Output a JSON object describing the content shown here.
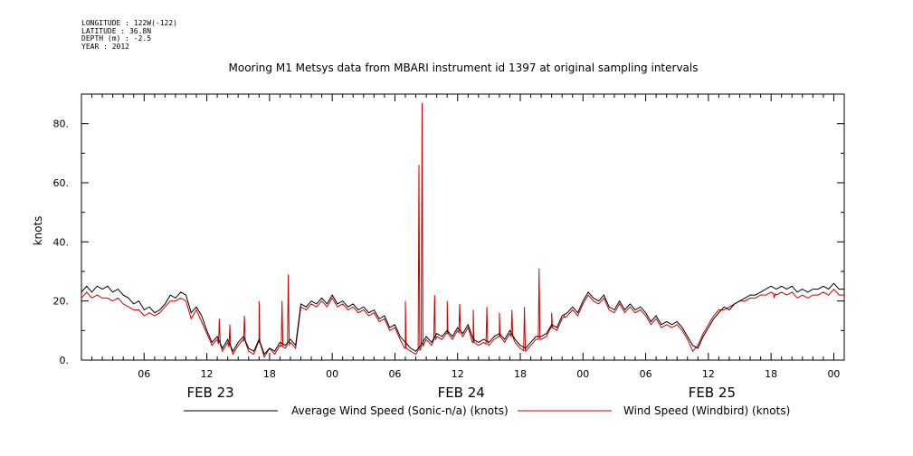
{
  "header": {
    "longitude": "LONGITUDE : 122W(-122)",
    "latitude": "LATITUDE : 36.8N",
    "depth": "DEPTH (m) : -2.5",
    "year": "YEAR : 2012"
  },
  "chart_data": {
    "type": "line",
    "title": "Mooring M1 Metsys data from MBARI instrument id 1397 at original sampling intervals",
    "ylabel": "knots",
    "ylim": [
      0,
      90
    ],
    "yticks": [
      0,
      20,
      40,
      60,
      80
    ],
    "ytick_labels": [
      "0.",
      "20.",
      "40.",
      "60.",
      "80."
    ],
    "xlim": [
      0,
      73
    ],
    "xticks": [
      6,
      12,
      18,
      24,
      30,
      36,
      42,
      48,
      54,
      60,
      66,
      72
    ],
    "xtick_labels": [
      "06",
      "12",
      "18",
      "00",
      "06",
      "12",
      "18",
      "00",
      "06",
      "12",
      "18",
      "00"
    ],
    "date_labels": [
      {
        "x": 12,
        "label": "FEB 23"
      },
      {
        "x": 36,
        "label": "FEB 24"
      },
      {
        "x": 60,
        "label": "FEB 25"
      }
    ],
    "series": [
      {
        "name": "Average Wind Speed (Sonic-n/a) (knots)",
        "color": "#000000",
        "points": [
          [
            0,
            23
          ],
          [
            0.5,
            25
          ],
          [
            1,
            23
          ],
          [
            1.5,
            25
          ],
          [
            2,
            24
          ],
          [
            2.5,
            25
          ],
          [
            3,
            23
          ],
          [
            3.5,
            24
          ],
          [
            4,
            22
          ],
          [
            4.5,
            21
          ],
          [
            5,
            19
          ],
          [
            5.5,
            20
          ],
          [
            6,
            17
          ],
          [
            6.5,
            18
          ],
          [
            7,
            16
          ],
          [
            7.5,
            17
          ],
          [
            8,
            19
          ],
          [
            8.5,
            22
          ],
          [
            9,
            21
          ],
          [
            9.5,
            23
          ],
          [
            10,
            22
          ],
          [
            10.5,
            16
          ],
          [
            11,
            18
          ],
          [
            11.5,
            15
          ],
          [
            12,
            10
          ],
          [
            12.5,
            6
          ],
          [
            13,
            8
          ],
          [
            13.5,
            4
          ],
          [
            14,
            7
          ],
          [
            14.5,
            3
          ],
          [
            15,
            6
          ],
          [
            15.5,
            8
          ],
          [
            16,
            4
          ],
          [
            16.5,
            3
          ],
          [
            17,
            7
          ],
          [
            17.5,
            2
          ],
          [
            18,
            4
          ],
          [
            18.5,
            3
          ],
          [
            19,
            6
          ],
          [
            19.5,
            5
          ],
          [
            20,
            7
          ],
          [
            20.5,
            5
          ],
          [
            21,
            19
          ],
          [
            21.5,
            18
          ],
          [
            22,
            20
          ],
          [
            22.5,
            19
          ],
          [
            23,
            21
          ],
          [
            23.5,
            19
          ],
          [
            24,
            22
          ],
          [
            24.5,
            19
          ],
          [
            25,
            20
          ],
          [
            25.5,
            18
          ],
          [
            26,
            19
          ],
          [
            26.5,
            17
          ],
          [
            27,
            18
          ],
          [
            27.5,
            16
          ],
          [
            28,
            17
          ],
          [
            28.5,
            14
          ],
          [
            29,
            15
          ],
          [
            29.5,
            11
          ],
          [
            30,
            12
          ],
          [
            30.5,
            8
          ],
          [
            31,
            6
          ],
          [
            31.5,
            4
          ],
          [
            32,
            3
          ],
          [
            32.5,
            5
          ],
          [
            33,
            8
          ],
          [
            33.5,
            6
          ],
          [
            34,
            9
          ],
          [
            34.5,
            8
          ],
          [
            35,
            10
          ],
          [
            35.5,
            8
          ],
          [
            36,
            11
          ],
          [
            36.5,
            9
          ],
          [
            37,
            12
          ],
          [
            37.5,
            7
          ],
          [
            38,
            6
          ],
          [
            38.5,
            7
          ],
          [
            39,
            6
          ],
          [
            39.5,
            8
          ],
          [
            40,
            9
          ],
          [
            40.5,
            7
          ],
          [
            41,
            10
          ],
          [
            41.5,
            7
          ],
          [
            42,
            5
          ],
          [
            42.5,
            4
          ],
          [
            43,
            6
          ],
          [
            43.5,
            8
          ],
          [
            44,
            8
          ],
          [
            44.5,
            9
          ],
          [
            45,
            12
          ],
          [
            45.5,
            11
          ],
          [
            46,
            15
          ],
          [
            46.5,
            16
          ],
          [
            47,
            18
          ],
          [
            47.5,
            16
          ],
          [
            48,
            20
          ],
          [
            48.5,
            23
          ],
          [
            49,
            21
          ],
          [
            49.5,
            20
          ],
          [
            50,
            22
          ],
          [
            50.5,
            18
          ],
          [
            51,
            17
          ],
          [
            51.5,
            20
          ],
          [
            52,
            17
          ],
          [
            52.5,
            19
          ],
          [
            53,
            17
          ],
          [
            53.5,
            18
          ],
          [
            54,
            16
          ],
          [
            54.5,
            13
          ],
          [
            55,
            15
          ],
          [
            55.5,
            12
          ],
          [
            56,
            13
          ],
          [
            56.5,
            12
          ],
          [
            57,
            13
          ],
          [
            57.5,
            11
          ],
          [
            58,
            8
          ],
          [
            58.5,
            5
          ],
          [
            59,
            4
          ],
          [
            59.5,
            8
          ],
          [
            60,
            11
          ],
          [
            60.5,
            14
          ],
          [
            61,
            16
          ],
          [
            61.5,
            18
          ],
          [
            62,
            17
          ],
          [
            62.5,
            19
          ],
          [
            63,
            20
          ],
          [
            63.5,
            21
          ],
          [
            64,
            22
          ],
          [
            64.5,
            22
          ],
          [
            65,
            23
          ],
          [
            65.5,
            24
          ],
          [
            66,
            25
          ],
          [
            66.5,
            24
          ],
          [
            67,
            25
          ],
          [
            67.5,
            24
          ],
          [
            68,
            25
          ],
          [
            68.5,
            23
          ],
          [
            69,
            24
          ],
          [
            69.5,
            23
          ],
          [
            70,
            24
          ],
          [
            70.5,
            24
          ],
          [
            71,
            25
          ],
          [
            71.5,
            24
          ],
          [
            72,
            26
          ],
          [
            72.5,
            24
          ],
          [
            73,
            24
          ]
        ]
      },
      {
        "name": "Wind Speed (Windbird) (knots)",
        "color": "#cc0000",
        "points": [
          [
            0,
            21
          ],
          [
            0.5,
            23
          ],
          [
            1,
            21
          ],
          [
            1.5,
            22
          ],
          [
            2,
            21
          ],
          [
            2.5,
            21
          ],
          [
            3,
            20
          ],
          [
            3.5,
            21
          ],
          [
            4,
            19
          ],
          [
            4.5,
            18
          ],
          [
            5,
            17
          ],
          [
            5.5,
            17
          ],
          [
            6,
            15
          ],
          [
            6.5,
            16
          ],
          [
            7,
            15
          ],
          [
            7.5,
            16
          ],
          [
            8,
            18
          ],
          [
            8.5,
            20
          ],
          [
            9,
            20
          ],
          [
            9.5,
            21
          ],
          [
            10,
            20
          ],
          [
            10.5,
            14
          ],
          [
            11,
            17
          ],
          [
            11.5,
            13
          ],
          [
            12,
            9
          ],
          [
            12.5,
            5
          ],
          [
            13,
            7
          ],
          [
            13.5,
            3
          ],
          [
            14,
            6
          ],
          [
            14.5,
            2
          ],
          [
            15,
            5
          ],
          [
            15.5,
            7
          ],
          [
            16,
            3
          ],
          [
            16.5,
            2
          ],
          [
            17,
            6
          ],
          [
            17.5,
            1
          ],
          [
            18,
            4
          ],
          [
            18.5,
            2
          ],
          [
            19,
            5
          ],
          [
            19.5,
            4
          ],
          [
            20,
            6
          ],
          [
            20.5,
            4
          ],
          [
            21,
            18
          ],
          [
            21.5,
            17
          ],
          [
            22,
            19
          ],
          [
            22.5,
            18
          ],
          [
            23,
            20
          ],
          [
            23.5,
            18
          ],
          [
            24,
            21
          ],
          [
            24.5,
            18
          ],
          [
            25,
            19
          ],
          [
            25.5,
            17
          ],
          [
            26,
            18
          ],
          [
            26.5,
            16
          ],
          [
            27,
            17
          ],
          [
            27.5,
            15
          ],
          [
            28,
            16
          ],
          [
            28.5,
            13
          ],
          [
            29,
            14
          ],
          [
            29.5,
            10
          ],
          [
            30,
            11
          ],
          [
            30.5,
            7
          ],
          [
            31,
            4
          ],
          [
            31.5,
            3
          ],
          [
            32,
            2
          ],
          [
            32.5,
            4
          ],
          [
            33,
            7
          ],
          [
            33.5,
            5
          ],
          [
            34,
            8
          ],
          [
            34.5,
            7
          ],
          [
            35,
            9
          ],
          [
            35.5,
            7
          ],
          [
            36,
            10
          ],
          [
            36.5,
            8
          ],
          [
            37,
            11
          ],
          [
            37.5,
            6
          ],
          [
            38,
            5
          ],
          [
            38.5,
            6
          ],
          [
            39,
            5
          ],
          [
            39.5,
            7
          ],
          [
            40,
            8
          ],
          [
            40.5,
            6
          ],
          [
            41,
            9
          ],
          [
            41.5,
            6
          ],
          [
            42,
            4
          ],
          [
            42.5,
            3
          ],
          [
            43,
            5
          ],
          [
            43.5,
            7
          ],
          [
            44,
            7
          ],
          [
            44.5,
            8
          ],
          [
            45,
            11
          ],
          [
            45.5,
            10
          ],
          [
            46,
            14
          ],
          [
            46.5,
            15
          ],
          [
            47,
            17
          ],
          [
            47.5,
            15
          ],
          [
            48,
            19
          ],
          [
            48.5,
            22
          ],
          [
            49,
            20
          ],
          [
            49.5,
            19
          ],
          [
            50,
            21
          ],
          [
            50.5,
            17
          ],
          [
            51,
            16
          ],
          [
            51.5,
            19
          ],
          [
            52,
            16
          ],
          [
            52.5,
            18
          ],
          [
            53,
            16
          ],
          [
            53.5,
            17
          ],
          [
            54,
            15
          ],
          [
            54.5,
            12
          ],
          [
            55,
            14
          ],
          [
            55.5,
            11
          ],
          [
            56,
            12
          ],
          [
            56.5,
            11
          ],
          [
            57,
            12
          ],
          [
            57.5,
            10
          ],
          [
            58,
            7
          ],
          [
            58.5,
            3
          ],
          [
            59,
            5
          ],
          [
            59.5,
            9
          ],
          [
            60,
            12
          ],
          [
            60.5,
            15
          ],
          [
            61,
            17
          ],
          [
            61.5,
            17
          ],
          [
            62,
            18
          ],
          [
            62.5,
            19
          ],
          [
            63,
            20
          ],
          [
            63.5,
            20
          ],
          [
            64,
            21
          ],
          [
            64.5,
            21
          ],
          [
            65,
            22
          ],
          [
            65.5,
            22
          ],
          [
            66,
            23
          ],
          [
            66.5,
            22
          ],
          [
            67,
            23
          ],
          [
            67.5,
            22
          ],
          [
            68,
            23
          ],
          [
            68.5,
            21
          ],
          [
            69,
            22
          ],
          [
            69.5,
            21
          ],
          [
            70,
            22
          ],
          [
            70.5,
            22
          ],
          [
            71,
            23
          ],
          [
            71.5,
            22
          ],
          [
            72,
            24
          ],
          [
            72.5,
            22
          ],
          [
            73,
            22
          ]
        ]
      }
    ],
    "spikes": [
      {
        "x": 13.2,
        "y": 14
      },
      {
        "x": 14.2,
        "y": 12
      },
      {
        "x": 15.6,
        "y": 15
      },
      {
        "x": 17.0,
        "y": 20
      },
      {
        "x": 19.2,
        "y": 20
      },
      {
        "x": 19.8,
        "y": 29
      },
      {
        "x": 31.0,
        "y": 20
      },
      {
        "x": 32.3,
        "y": 66
      },
      {
        "x": 32.6,
        "y": 87
      },
      {
        "x": 33.8,
        "y": 22
      },
      {
        "x": 35.0,
        "y": 20
      },
      {
        "x": 36.2,
        "y": 19
      },
      {
        "x": 37.5,
        "y": 17
      },
      {
        "x": 38.8,
        "y": 18
      },
      {
        "x": 40.0,
        "y": 16
      },
      {
        "x": 41.2,
        "y": 17
      },
      {
        "x": 42.4,
        "y": 18
      },
      {
        "x": 43.8,
        "y": 31
      },
      {
        "x": 45.0,
        "y": 16
      },
      {
        "x": 46.2,
        "y": 15
      },
      {
        "x": 66.3,
        "y": 21
      }
    ]
  }
}
